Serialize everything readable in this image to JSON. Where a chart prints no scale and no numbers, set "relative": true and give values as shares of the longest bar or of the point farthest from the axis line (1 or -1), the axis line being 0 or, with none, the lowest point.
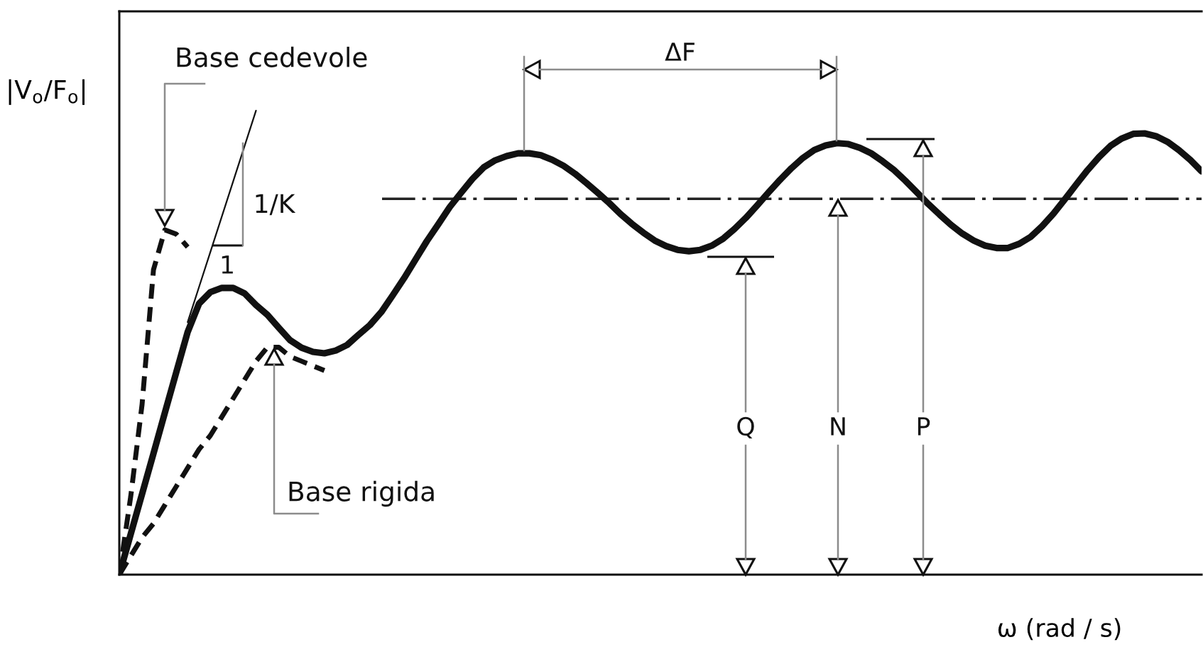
{
  "chart_data": {
    "type": "line",
    "relative": true,
    "xlabel": "ω (rad / s)",
    "ylabel": "|V$_{o}$/F$_{o}$|",
    "categories": [
      null,
      null,
      null,
      null,
      null,
      null,
      null,
      null,
      null,
      null,
      null,
      null,
      null,
      null,
      null,
      null,
      null,
      null,
      null,
      null,
      null,
      null,
      null,
      null,
      null,
      null,
      null,
      null,
      null,
      null,
      null,
      null,
      null,
      null,
      null,
      null,
      null,
      null,
      null,
      null,
      null,
      null,
      null,
      null,
      null,
      null,
      null,
      null,
      null,
      null,
      null,
      null,
      null,
      null,
      null,
      null,
      null,
      null,
      null,
      null,
      null,
      null,
      null,
      null,
      null,
      null,
      null,
      null,
      null,
      null,
      null,
      null,
      null,
      null,
      null,
      null,
      null,
      null,
      null,
      null,
      null,
      null,
      null,
      null,
      null,
      null,
      null,
      null,
      null,
      null,
      null,
      null,
      null,
      null,
      null,
      null
    ],
    "series": [
      {
        "color": "#111111",
        "line_style": "solid",
        "values": [
          0,
          0.087,
          0.174,
          0.261,
          0.349,
          0.436,
          0.523,
          0.584,
          0.609,
          0.618,
          0.618,
          0.606,
          0.581,
          0.56,
          0.532,
          0.505,
          0.489,
          0.48,
          0.477,
          0.483,
          0.495,
          0.517,
          0.538,
          0.566,
          0.602,
          0.639,
          0.679,
          0.719,
          0.755,
          0.792,
          0.823,
          0.853,
          0.878,
          0.893,
          0.902,
          0.908,
          0.908,
          0.904,
          0.894,
          0.881,
          0.864,
          0.844,
          0.823,
          0.801,
          0.777,
          0.756,
          0.737,
          0.72,
          0.708,
          0.7,
          0.697,
          0.7,
          0.709,
          0.724,
          0.745,
          0.769,
          0.796,
          0.824,
          0.851,
          0.876,
          0.898,
          0.915,
          0.925,
          0.93,
          0.928,
          0.92,
          0.908,
          0.891,
          0.872,
          0.849,
          0.824,
          0.799,
          0.776,
          0.754,
          0.735,
          0.72,
          0.709,
          0.704,
          0.704,
          0.713,
          0.728,
          0.751,
          0.778,
          0.809,
          0.841,
          0.872,
          0.9,
          0.924,
          0.94,
          0.95,
          0.951,
          0.945,
          0.933,
          0.915,
          0.894,
          0.869
        ]
      },
      {
        "color": "#111111",
        "line_style": "dashed",
        "values": [
          0,
          0.168,
          0.367,
          0.657,
          0.743,
          0.734,
          0.706,
          null,
          null,
          null,
          null,
          null,
          null,
          null,
          null,
          null,
          null,
          null,
          null,
          null,
          null,
          null,
          null,
          null,
          null,
          null,
          null,
          null,
          null,
          null,
          null,
          null,
          null,
          null,
          null,
          null,
          null,
          null,
          null,
          null,
          null,
          null,
          null,
          null,
          null,
          null,
          null,
          null,
          null,
          null,
          null,
          null,
          null,
          null,
          null,
          null,
          null,
          null,
          null,
          null,
          null,
          null,
          null,
          null,
          null,
          null,
          null,
          null,
          null,
          null,
          null,
          null,
          null,
          null,
          null,
          null,
          null,
          null,
          null,
          null,
          null,
          null,
          null,
          null,
          null,
          null,
          null,
          null,
          null,
          null,
          null,
          null,
          null,
          null,
          null,
          null
        ]
      },
      {
        "color": "#111111",
        "line_style": "dashed",
        "values": [
          0,
          0.04,
          0.08,
          0.11,
          0.15,
          0.19,
          0.23,
          0.27,
          0.3,
          0.34,
          0.38,
          0.42,
          0.46,
          0.49,
          0.49,
          0.47,
          0.46,
          0.45,
          0.44,
          null,
          null,
          null,
          null,
          null,
          null,
          null,
          null,
          null,
          null,
          null,
          null,
          null,
          null,
          null,
          null,
          null,
          null,
          null,
          null,
          null,
          null,
          null,
          null,
          null,
          null,
          null,
          null,
          null,
          null,
          null,
          null,
          null,
          null,
          null,
          null,
          null,
          null,
          null,
          null,
          null,
          null,
          null,
          null,
          null,
          null,
          null,
          null,
          null,
          null,
          null,
          null,
          null,
          null,
          null,
          null,
          null,
          null,
          null,
          null,
          null,
          null,
          null,
          null,
          null,
          null,
          null,
          null,
          null,
          null,
          null,
          null,
          null,
          null,
          null,
          null,
          null
        ]
      },
      {
        "color": "#111111",
        "line_style": "solid",
        "values": [
          null,
          null,
          null,
          null,
          null,
          null,
          0.544,
          0.62,
          0.696,
          0.772,
          0.848,
          0.924,
          1.0,
          null,
          null,
          null,
          null,
          null,
          null,
          null,
          null,
          null,
          null,
          null,
          null,
          null,
          null,
          null,
          null,
          null,
          null,
          null,
          null,
          null,
          null,
          null,
          null,
          null,
          null,
          null,
          null,
          null,
          null,
          null,
          null,
          null,
          null,
          null,
          null,
          null,
          null,
          null,
          null,
          null,
          null,
          null,
          null,
          null,
          null,
          null,
          null,
          null,
          null,
          null,
          null,
          null,
          null,
          null,
          null,
          null,
          null,
          null,
          null,
          null,
          null,
          null,
          null,
          null,
          null,
          null,
          null,
          null,
          null,
          null,
          null,
          null,
          null,
          null,
          null,
          null,
          null,
          null,
          null,
          null,
          null,
          null
        ]
      }
    ],
    "ref_lines": [
      {
        "axis": "y",
        "value": 0.81,
        "color": "#222222",
        "line_style": "dashdot"
      }
    ],
    "annotations": [
      "Base cedevole",
      "ΔF",
      "1/K",
      "1",
      "Q",
      "N",
      "P",
      "Base rigida"
    ]
  }
}
